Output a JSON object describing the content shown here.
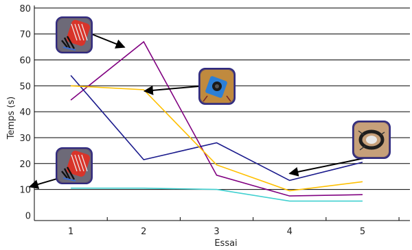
{
  "chart_data": {
    "type": "line",
    "title": "",
    "xlabel": "Essai",
    "ylabel": "Temps (s)",
    "categories": [
      "1",
      "2",
      "3",
      "4",
      "5"
    ],
    "xlim": [
      0.5,
      5.65
    ],
    "ylim": [
      -2,
      81
    ],
    "yticks": [
      0,
      10,
      20,
      30,
      40,
      50,
      60,
      70,
      80
    ],
    "grid": "horizontal",
    "legend": "none",
    "series": [
      {
        "color": "#800080",
        "values": [
          44.5,
          67,
          15.5,
          7.5,
          8
        ]
      },
      {
        "color": "#1a1a8c",
        "values": [
          54,
          21.5,
          28,
          13.5,
          20.5
        ]
      },
      {
        "color": "#ffc000",
        "values": [
          50,
          48.5,
          19.5,
          9.5,
          13
        ]
      },
      {
        "color": "#40d0d0",
        "values": [
          10.5,
          10.5,
          10,
          5.5,
          5.5
        ]
      }
    ],
    "annotations": [
      {
        "icon": "red-robotic-glove-photo",
        "target_series": 0,
        "target_point": 1
      },
      {
        "icon": "blue-joystick-photo",
        "target_series": 2,
        "target_point": 1
      },
      {
        "icon": "red-robotic-glove-photo",
        "target_series": 3,
        "target_point": 0
      },
      {
        "icon": "black-ring-controller-photo",
        "target_series": 1,
        "target_point": 3
      }
    ]
  }
}
